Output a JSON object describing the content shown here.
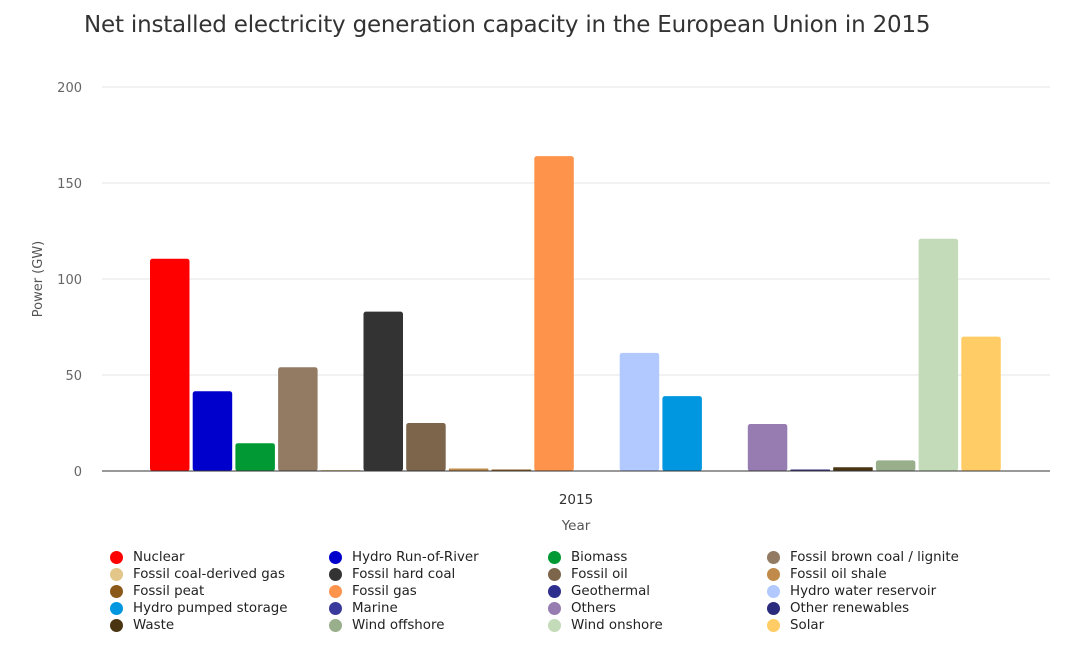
{
  "chart_data": {
    "type": "bar",
    "title": "Net installed electricity generation capacity in the European Union in 2015",
    "xlabel": "Year",
    "ylabel": "Power (GW)",
    "categories": [
      "2015"
    ],
    "ylim": [
      0,
      200
    ],
    "yticks": [
      "0",
      "50",
      "100",
      "150",
      "200"
    ],
    "grid": true,
    "legend_position": "bottom",
    "series": [
      {
        "name": "Nuclear",
        "color": "#ff0000",
        "values": [
          110.5
        ]
      },
      {
        "name": "Hydro Run-of-River",
        "color": "#0000cc",
        "values": [
          41.5
        ]
      },
      {
        "name": "Biomass",
        "color": "#009933",
        "values": [
          14.5
        ]
      },
      {
        "name": "Fossil brown coal / lignite",
        "color": "#937b63",
        "values": [
          54
        ]
      },
      {
        "name": "Fossil coal-derived gas",
        "color": "#e2c68a",
        "values": [
          0.5
        ]
      },
      {
        "name": "Fossil hard coal",
        "color": "#333333",
        "values": [
          83
        ]
      },
      {
        "name": "Fossil oil",
        "color": "#7d654c",
        "values": [
          25
        ]
      },
      {
        "name": "Fossil oil shale",
        "color": "#c08a4a",
        "values": [
          1.3
        ]
      },
      {
        "name": "Fossil peat",
        "color": "#8b5a1b",
        "values": [
          0.8
        ]
      },
      {
        "name": "Fossil gas",
        "color": "#fe944c",
        "values": [
          164
        ]
      },
      {
        "name": "Geothermal",
        "color": "#2e2e8f",
        "values": [
          0
        ]
      },
      {
        "name": "Hydro water reservoir",
        "color": "#b2c9ff",
        "values": [
          61.5
        ]
      },
      {
        "name": "Hydro pumped storage",
        "color": "#0096e0",
        "values": [
          39
        ]
      },
      {
        "name": "Marine",
        "color": "#3a3a9c",
        "values": [
          0
        ]
      },
      {
        "name": "Others",
        "color": "#967cb0",
        "values": [
          24.5
        ]
      },
      {
        "name": "Other renewables",
        "color": "#2b2b7d",
        "values": [
          0.8
        ]
      },
      {
        "name": "Waste",
        "color": "#4a3513",
        "values": [
          2
        ]
      },
      {
        "name": "Wind offshore",
        "color": "#99af8c",
        "values": [
          5.5
        ]
      },
      {
        "name": "Wind onshore",
        "color": "#c3dbb8",
        "values": [
          121
        ]
      },
      {
        "name": "Solar",
        "color": "#ffcc66",
        "values": [
          70
        ]
      }
    ],
    "legend_order": [
      "Nuclear",
      "Hydro Run-of-River",
      "Biomass",
      "Fossil brown coal / lignite",
      "Fossil coal-derived gas",
      "Fossil hard coal",
      "Fossil oil",
      "Fossil oil shale",
      "Fossil peat",
      "Fossil gas",
      "Geothermal",
      "Hydro water reservoir",
      "Hydro pumped storage",
      "Marine",
      "Others",
      "Other renewables",
      "Waste",
      "Wind offshore",
      "Wind onshore",
      "Solar"
    ],
    "legend_colors": {
      "Nuclear": "#ff0000",
      "Hydro Run-of-River": "#0000cc",
      "Biomass": "#009933",
      "Fossil brown coal / lignite": "#937b63",
      "Fossil coal-derived gas": "#e2c68a",
      "Fossil hard coal": "#333333",
      "Fossil oil": "#7d654c",
      "Fossil oil shale": "#c08a4a",
      "Fossil peat": "#8b5a1b",
      "Fossil gas": "#fe944c",
      "Geothermal": "#2e2e8f",
      "Hydro water reservoir": "#b2c9ff",
      "Hydro pumped storage": "#0096e0",
      "Marine": "#3a3a9c",
      "Others": "#967cb0",
      "Other renewables": "#2b2b7d",
      "Waste": "#4a3513",
      "Wind offshore": "#99af8c",
      "Wind onshore": "#c3dbb8",
      "Solar": "#ffcc66"
    }
  }
}
